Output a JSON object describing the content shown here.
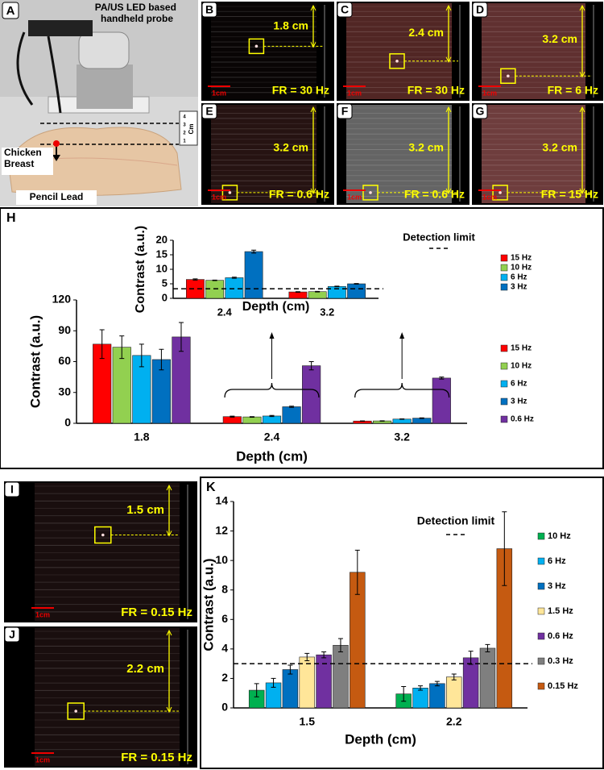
{
  "photo": {
    "letter": "A",
    "probe_label": "PA/US LED based handheld probe",
    "tissue_label": "Chicken Breast",
    "target_label": "Pencil Lead",
    "ruler_unit": "Cm",
    "ruler_ticks": [
      "1",
      "2",
      "3",
      "4"
    ]
  },
  "panels": [
    {
      "letter": "B",
      "depth": "1.8 cm",
      "fr": "FR = 30 Hz",
      "scale": "1cm",
      "background": "#0a0606"
    },
    {
      "letter": "C",
      "depth": "2.4 cm",
      "fr": "FR = 30 Hz",
      "scale": "1cm",
      "background": "#5a2a28"
    },
    {
      "letter": "D",
      "depth": "3.2 cm",
      "fr": "FR = 6 Hz",
      "scale": "1cm",
      "background": "#6a3535"
    },
    {
      "letter": "E",
      "depth": "3.2 cm",
      "fr": "FR = 0.6 Hz",
      "scale": "1cm",
      "background": "#2a1514"
    },
    {
      "letter": "F",
      "depth": "3.2 cm",
      "fr": "FR = 0.6 Hz",
      "scale": "1cm",
      "background": "#6f6f6f"
    },
    {
      "letter": "G",
      "depth": "3.2 cm",
      "fr": "FR = 15 Hz",
      "scale": "1cm",
      "background": "#7a4444"
    },
    {
      "letter": "I",
      "depth": "1.5 cm",
      "fr": "FR = 0.15 Hz",
      "scale": "1cm",
      "background": "#1c1010"
    },
    {
      "letter": "J",
      "depth": "2.2 cm",
      "fr": "FR = 0.15 Hz",
      "scale": "1cm",
      "background": "#1c1010"
    }
  ],
  "chart_data": [
    {
      "type": "bar",
      "ylabel": "Contrast (a.u.)",
      "xlabel": "Depth (cm)",
      "categories": [
        "2.4",
        "3.2"
      ],
      "ylim": [
        0,
        20
      ],
      "yticks": [
        0,
        5,
        10,
        15,
        20
      ],
      "detection_limit": 3.3,
      "detection_label": "Detection limit",
      "series": [
        {
          "name": "15 Hz",
          "color": "#ff0000",
          "values": [
            6.5,
            2.2
          ],
          "errors": [
            0.2,
            0.1
          ]
        },
        {
          "name": "10 Hz",
          "color": "#92d050",
          "values": [
            6.2,
            2.3
          ],
          "errors": [
            0.1,
            0.1
          ]
        },
        {
          "name": "6 Hz",
          "color": "#00b0f0",
          "values": [
            7.1,
            4.1
          ],
          "errors": [
            0.2,
            0.1
          ]
        },
        {
          "name": "3 Hz",
          "color": "#0070c0",
          "values": [
            16.1,
            5
          ],
          "errors": [
            0.5,
            0.1
          ]
        }
      ]
    },
    {
      "type": "bar",
      "panel_label": "H",
      "ylabel": "Contrast (a.u.)",
      "xlabel": "Depth (cm)",
      "categories": [
        "1.8",
        "2.4",
        "3.2"
      ],
      "ylim": [
        0,
        120
      ],
      "yticks": [
        0,
        30,
        60,
        90,
        120
      ],
      "series": [
        {
          "name": "15 Hz",
          "color": "#ff0000",
          "values": [
            77,
            6.5,
            2.2
          ],
          "errors": [
            14,
            0.5,
            0.2
          ]
        },
        {
          "name": "10 Hz",
          "color": "#92d050",
          "values": [
            74,
            6.2,
            2.3
          ],
          "errors": [
            11,
            0.3,
            0.2
          ]
        },
        {
          "name": "6 Hz",
          "color": "#00b0f0",
          "values": [
            66,
            7.1,
            4.1
          ],
          "errors": [
            11,
            0.5,
            0.2
          ]
        },
        {
          "name": "3 Hz",
          "color": "#0070c0",
          "values": [
            62,
            16.1,
            5
          ],
          "errors": [
            10,
            0.6,
            0.3
          ]
        },
        {
          "name": "0.6 Hz",
          "color": "#7030a0",
          "values": [
            84,
            56,
            44
          ],
          "errors": [
            14,
            4,
            1
          ]
        }
      ]
    },
    {
      "type": "bar",
      "panel_label": "K",
      "ylabel": "Contrast (a.u.)",
      "xlabel": "Depth (cm)",
      "categories": [
        "1.5",
        "2.2"
      ],
      "ylim": [
        0,
        14
      ],
      "yticks": [
        0,
        2,
        4,
        6,
        8,
        10,
        12,
        14
      ],
      "detection_limit": 3,
      "detection_label": "Detection limit",
      "series": [
        {
          "name": "10 Hz",
          "color": "#00b050",
          "values": [
            1.2,
            0.95
          ],
          "errors": [
            0.45,
            0.5
          ]
        },
        {
          "name": "6 Hz",
          "color": "#00b0f0",
          "values": [
            1.7,
            1.35
          ],
          "errors": [
            0.3,
            0.15
          ]
        },
        {
          "name": "3 Hz",
          "color": "#0070c0",
          "values": [
            2.6,
            1.65
          ],
          "errors": [
            0.3,
            0.15
          ]
        },
        {
          "name": "1.5 Hz",
          "color": "#ffe699",
          "values": [
            3.45,
            2.1
          ],
          "errors": [
            0.25,
            0.2
          ]
        },
        {
          "name": "0.6 Hz",
          "color": "#7030a0",
          "values": [
            3.6,
            3.4
          ],
          "errors": [
            0.2,
            0.45
          ]
        },
        {
          "name": "0.3 Hz",
          "color": "#7f7f7f",
          "values": [
            4.25,
            4.05
          ],
          "errors": [
            0.45,
            0.25
          ]
        },
        {
          "name": "0.15 Hz",
          "color": "#c55a11",
          "values": [
            9.2,
            10.8
          ],
          "errors": [
            1.5,
            2.5
          ]
        }
      ]
    }
  ]
}
